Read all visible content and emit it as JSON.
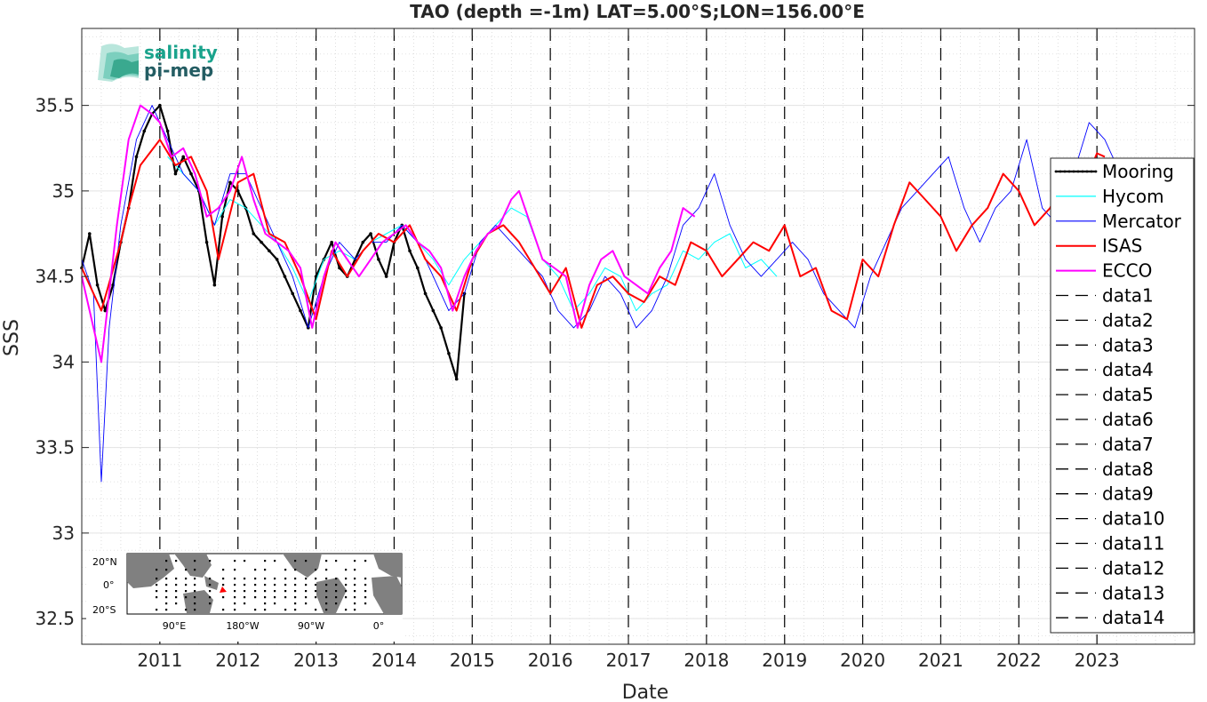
{
  "chart_data": {
    "type": "line",
    "title": "TAO (depth =-1m) LAT=5.00°S;LON=156.00°E",
    "xlabel": "Date",
    "ylabel": "SSS",
    "xlim": [
      2010.0,
      2024.25
    ],
    "ylim": [
      32.35,
      35.95
    ],
    "grid": true,
    "legend_position": "right",
    "x_ticks": [
      2011,
      2012,
      2013,
      2014,
      2015,
      2016,
      2017,
      2018,
      2019,
      2020,
      2021,
      2022,
      2023
    ],
    "x_tick_labels": [
      "2011",
      "2012",
      "2013",
      "2014",
      "2015",
      "2016",
      "2017",
      "2018",
      "2019",
      "2020",
      "2021",
      "2022",
      "2023"
    ],
    "y_ticks": [
      32.5,
      33,
      33.5,
      34,
      34.5,
      35,
      35.5
    ],
    "y_tick_labels": [
      "32.5",
      "33",
      "33.5",
      "34",
      "34.5",
      "35",
      "35.5"
    ],
    "series": [
      {
        "name": "Mooring",
        "color": "#000000",
        "x": [
          2010.0,
          2010.1,
          2010.2,
          2010.3,
          2010.4,
          2010.5,
          2010.6,
          2010.7,
          2010.8,
          2010.9,
          2011.0,
          2011.1,
          2011.2,
          2011.3,
          2011.4,
          2011.5,
          2011.6,
          2011.7,
          2011.8,
          2011.9,
          2012.0,
          2012.1,
          2012.2,
          2012.3,
          2012.4,
          2012.5,
          2012.6,
          2012.7,
          2012.8,
          2012.9,
          2013.0,
          2013.1,
          2013.2,
          2013.3,
          2013.4,
          2013.5,
          2013.6,
          2013.7,
          2013.8,
          2013.9,
          2014.0,
          2014.1,
          2014.2,
          2014.3,
          2014.4,
          2014.5,
          2014.6,
          2014.7,
          2014.8,
          2014.9
        ],
        "y": [
          34.55,
          34.75,
          34.45,
          34.3,
          34.45,
          34.7,
          34.9,
          35.2,
          35.35,
          35.45,
          35.5,
          35.35,
          35.1,
          35.2,
          35.1,
          35.0,
          34.7,
          34.45,
          34.85,
          35.05,
          35.0,
          34.9,
          34.75,
          34.7,
          34.65,
          34.6,
          34.5,
          34.4,
          34.3,
          34.2,
          34.5,
          34.6,
          34.7,
          34.55,
          34.5,
          34.6,
          34.7,
          34.75,
          34.6,
          34.5,
          34.7,
          34.8,
          34.65,
          34.55,
          34.4,
          34.3,
          34.2,
          34.05,
          33.9,
          34.4
        ]
      },
      {
        "name": "Hycom",
        "color": "#00ffff",
        "x": [
          2011.1,
          2011.3,
          2011.5,
          2011.7,
          2011.9,
          2012.1,
          2012.3,
          2012.5,
          2012.7,
          2012.9,
          2013.1,
          2013.3,
          2013.5,
          2013.7,
          2013.9,
          2014.1,
          2014.3,
          2014.5,
          2014.7,
          2014.9,
          2015.1,
          2015.3,
          2015.5,
          2015.7,
          2015.9,
          2016.1,
          2016.3,
          2016.5,
          2016.7,
          2016.9,
          2017.1,
          2017.3,
          2017.5,
          2017.7,
          2017.9,
          2018.1,
          2018.3,
          2018.5,
          2018.7,
          2018.9
        ],
        "y": [
          35.2,
          35.1,
          35.0,
          34.8,
          34.95,
          34.9,
          34.8,
          34.7,
          34.55,
          34.35,
          34.6,
          34.65,
          34.6,
          34.7,
          34.75,
          34.8,
          34.7,
          34.6,
          34.45,
          34.6,
          34.7,
          34.8,
          34.9,
          34.85,
          34.6,
          34.5,
          34.3,
          34.4,
          34.55,
          34.5,
          34.3,
          34.4,
          34.45,
          34.65,
          34.6,
          34.7,
          34.75,
          34.55,
          34.6,
          34.5
        ]
      },
      {
        "name": "Mercator",
        "color": "#0000ff",
        "x": [
          2010.0,
          2010.15,
          2010.25,
          2010.35,
          2010.5,
          2010.7,
          2010.9,
          2011.1,
          2011.3,
          2011.5,
          2011.7,
          2011.9,
          2012.1,
          2012.3,
          2012.5,
          2012.7,
          2012.9,
          2013.1,
          2013.3,
          2013.5,
          2013.7,
          2013.9,
          2014.1,
          2014.3,
          2014.5,
          2014.7,
          2014.9,
          2015.1,
          2015.3,
          2015.5,
          2015.7,
          2015.9,
          2016.1,
          2016.3,
          2016.5,
          2016.7,
          2016.9,
          2017.1,
          2017.3,
          2017.5,
          2017.7,
          2017.9,
          2018.1,
          2018.3,
          2018.5,
          2018.7,
          2018.9,
          2019.1,
          2019.3,
          2019.5,
          2019.7,
          2019.9,
          2020.1,
          2020.3,
          2020.5,
          2020.7,
          2020.9,
          2021.1,
          2021.3,
          2021.5,
          2021.7,
          2021.9,
          2022.1,
          2022.3,
          2022.5,
          2022.7,
          2022.9,
          2023.1,
          2023.3
        ],
        "y": [
          34.6,
          34.4,
          33.3,
          34.2,
          34.8,
          35.3,
          35.5,
          35.3,
          35.1,
          35.0,
          34.8,
          35.1,
          35.1,
          34.9,
          34.7,
          34.5,
          34.2,
          34.5,
          34.7,
          34.6,
          34.7,
          34.7,
          34.8,
          34.7,
          34.5,
          34.3,
          34.4,
          34.7,
          34.8,
          34.7,
          34.6,
          34.5,
          34.3,
          34.2,
          34.3,
          34.5,
          34.4,
          34.2,
          34.3,
          34.5,
          34.8,
          34.9,
          35.1,
          34.8,
          34.6,
          34.5,
          34.6,
          34.7,
          34.6,
          34.4,
          34.3,
          34.2,
          34.5,
          34.7,
          34.9,
          35.0,
          35.1,
          35.2,
          34.9,
          34.7,
          34.9,
          35.0,
          35.3,
          34.9,
          34.8,
          35.1,
          35.4,
          35.3,
          35.1
        ]
      },
      {
        "name": "ISAS",
        "color": "#ff0000",
        "x": [
          2010.0,
          2010.25,
          2010.5,
          2010.6,
          2010.75,
          2011.0,
          2011.2,
          2011.4,
          2011.6,
          2011.75,
          2012.0,
          2012.2,
          2012.4,
          2012.6,
          2012.8,
          2013.0,
          2013.2,
          2013.4,
          2013.6,
          2013.8,
          2014.0,
          2014.2,
          2014.4,
          2014.6,
          2014.8,
          2015.0,
          2015.2,
          2015.4,
          2015.6,
          2015.8,
          2016.0,
          2016.2,
          2016.4,
          2016.6,
          2016.8,
          2017.0,
          2017.2,
          2017.4,
          2017.6,
          2017.8,
          2018.0,
          2018.2,
          2018.4,
          2018.6,
          2018.8,
          2019.0,
          2019.2,
          2019.4,
          2019.6,
          2019.8,
          2020.0,
          2020.2,
          2020.4,
          2020.6,
          2020.8,
          2021.0,
          2021.2,
          2021.4,
          2021.6,
          2021.8,
          2022.0,
          2022.2,
          2022.4,
          2022.6,
          2022.8,
          2023.0,
          2023.1
        ],
        "y": [
          34.55,
          34.3,
          34.7,
          34.9,
          35.15,
          35.3,
          35.15,
          35.2,
          35.0,
          34.6,
          35.05,
          35.1,
          34.75,
          34.7,
          34.5,
          34.25,
          34.65,
          34.5,
          34.65,
          34.75,
          34.7,
          34.8,
          34.6,
          34.5,
          34.3,
          34.6,
          34.75,
          34.8,
          34.7,
          34.55,
          34.4,
          34.55,
          34.2,
          34.45,
          34.5,
          34.4,
          34.35,
          34.5,
          34.45,
          34.7,
          34.65,
          34.5,
          34.6,
          34.7,
          34.65,
          34.8,
          34.5,
          34.55,
          34.3,
          34.25,
          34.6,
          34.5,
          34.8,
          35.05,
          34.95,
          34.85,
          34.65,
          34.8,
          34.9,
          35.1,
          35.0,
          34.8,
          34.9,
          35.1,
          35.0,
          35.22,
          35.2
        ]
      },
      {
        "name": "ECCO",
        "color": "#ff00ff",
        "x": [
          2010.0,
          2010.25,
          2010.45,
          2010.6,
          2010.75,
          2010.9,
          2011.0,
          2011.15,
          2011.3,
          2011.45,
          2011.6,
          2011.75,
          2011.9,
          2012.05,
          2012.2,
          2012.35,
          2012.5,
          2012.65,
          2012.8,
          2012.95,
          2013.1,
          2013.25,
          2013.4,
          2013.55,
          2013.7,
          2013.85,
          2014.0,
          2014.15,
          2014.3,
          2014.45,
          2014.6,
          2014.75,
          2014.9,
          2015.05,
          2015.2,
          2015.35,
          2015.5,
          2015.6,
          2015.75,
          2015.9,
          2016.05,
          2016.2,
          2016.35,
          2016.5,
          2016.65,
          2016.8,
          2016.95,
          2017.1,
          2017.25,
          2017.4,
          2017.55,
          2017.7,
          2017.85
        ],
        "y": [
          34.5,
          34.0,
          34.8,
          35.3,
          35.5,
          35.45,
          35.4,
          35.2,
          35.25,
          35.1,
          34.85,
          34.9,
          35.0,
          35.2,
          34.95,
          34.75,
          34.7,
          34.65,
          34.55,
          34.2,
          34.5,
          34.7,
          34.6,
          34.5,
          34.6,
          34.7,
          34.75,
          34.8,
          34.7,
          34.65,
          34.55,
          34.3,
          34.5,
          34.65,
          34.75,
          34.8,
          34.95,
          35.0,
          34.8,
          34.6,
          34.55,
          34.5,
          34.2,
          34.45,
          34.6,
          34.65,
          34.5,
          34.45,
          34.4,
          34.55,
          34.65,
          34.9,
          34.85
        ]
      }
    ],
    "vertical_lines": {
      "style": "dashed",
      "color": "#000000",
      "x": [
        2011,
        2012,
        2013,
        2014,
        2015,
        2016,
        2017,
        2018,
        2019,
        2020,
        2021,
        2022,
        2023
      ]
    },
    "legend": {
      "entries": [
        "Mooring",
        "Hycom",
        "Mercator",
        "ISAS",
        "ECCO",
        "data1",
        "data2",
        "data3",
        "data4",
        "data5",
        "data6",
        "data7",
        "data8",
        "data9",
        "data10",
        "data11",
        "data12",
        "data13",
        "data14"
      ],
      "colors": [
        "#000000",
        "#00ffff",
        "#0000ff",
        "#ff0000",
        "#ff00ff",
        "#000000",
        "#000000",
        "#000000",
        "#000000",
        "#000000",
        "#000000",
        "#000000",
        "#000000",
        "#000000",
        "#000000",
        "#000000",
        "#000000",
        "#000000",
        "#000000"
      ],
      "styles": [
        "solid-dots",
        "solid",
        "solid",
        "solid",
        "solid",
        "dashed",
        "dashed",
        "dashed",
        "dashed",
        "dashed",
        "dashed",
        "dashed",
        "dashed",
        "dashed",
        "dashed",
        "dashed",
        "dashed",
        "dashed",
        "dashed"
      ]
    }
  },
  "logo": {
    "line1": "salinity",
    "line2": "pi-mep"
  },
  "inset_map": {
    "lat_labels": [
      "20°N",
      "0°",
      "20°S"
    ],
    "lon_labels": [
      "90°E",
      "180°W",
      "90°W",
      "0°"
    ]
  }
}
